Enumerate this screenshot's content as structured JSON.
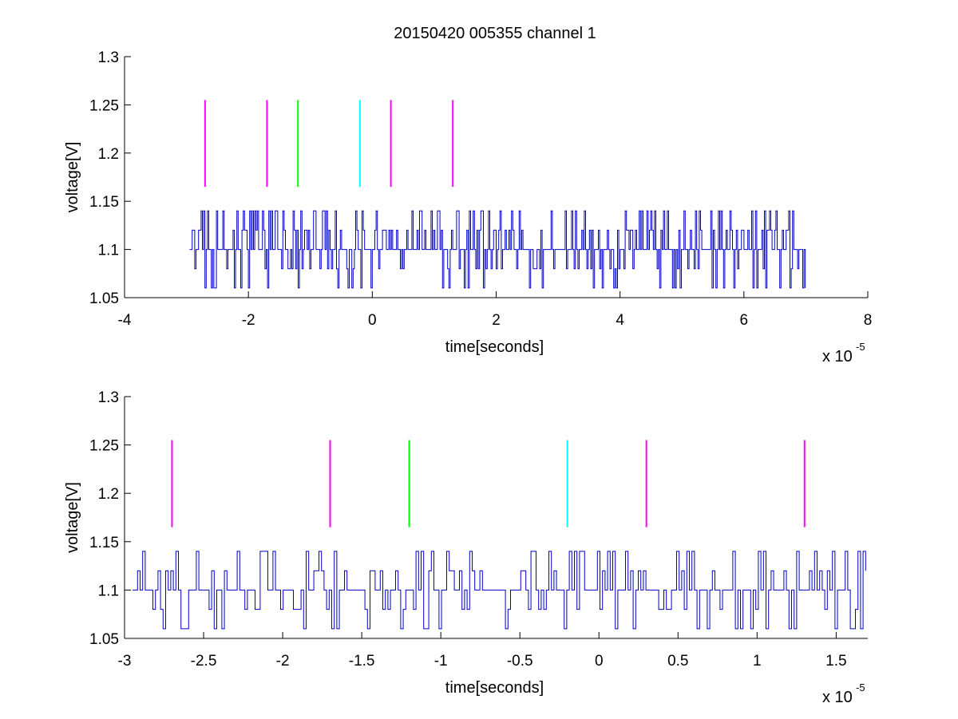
{
  "figure": {
    "title": "20150420 005355 channel 1"
  },
  "chart_data": [
    {
      "type": "line",
      "title": "20150420 005355 channel 1",
      "xlabel": "time[seconds]",
      "ylabel": "voltage[V]",
      "x_exponent_label": "x 10",
      "x_exponent_power": "-5",
      "xlim": [
        -4,
        8
      ],
      "ylim": [
        1.05,
        1.3
      ],
      "xticks": [
        -4,
        -2,
        0,
        2,
        4,
        6,
        8
      ],
      "xtick_labels": [
        "-4",
        "-2",
        "0",
        "2",
        "4",
        "6",
        "8"
      ],
      "yticks": [
        1.05,
        1.1,
        1.15,
        1.2,
        1.25,
        1.3
      ],
      "ytick_labels": [
        "1.05",
        "1.1",
        "1.15",
        "1.2",
        "1.25",
        "1.3"
      ],
      "grid": false,
      "signal": {
        "color": "#0000cc",
        "x_range": [
          -2.95,
          7.0
        ],
        "levels": [
          1.06,
          1.08,
          1.1,
          1.12,
          1.14
        ],
        "baseline": 1.1
      },
      "markers": [
        {
          "x": -2.7,
          "y0": 1.165,
          "y1": 1.255,
          "color": "#ff00ff"
        },
        {
          "x": -1.7,
          "y0": 1.165,
          "y1": 1.255,
          "color": "#ff00ff"
        },
        {
          "x": -1.2,
          "y0": 1.165,
          "y1": 1.255,
          "color": "#00ff00"
        },
        {
          "x": -0.2,
          "y0": 1.165,
          "y1": 1.255,
          "color": "#00ffff"
        },
        {
          "x": 0.3,
          "y0": 1.165,
          "y1": 1.255,
          "color": "#ff00ff"
        },
        {
          "x": 1.3,
          "y0": 1.165,
          "y1": 1.255,
          "color": "#ff00ff"
        }
      ]
    },
    {
      "type": "line",
      "xlabel": "time[seconds]",
      "ylabel": "voltage[V]",
      "x_exponent_label": "x 10",
      "x_exponent_power": "-5",
      "xlim": [
        -3.0,
        1.7
      ],
      "ylim": [
        1.05,
        1.3
      ],
      "xticks": [
        -3,
        -2.5,
        -2,
        -1.5,
        -1,
        -0.5,
        0,
        0.5,
        1,
        1.5
      ],
      "xtick_labels": [
        "-3",
        "-2.5",
        "-2",
        "-1.5",
        "-1",
        "-0.5",
        "0",
        "0.5",
        "1",
        "1.5"
      ],
      "yticks": [
        1.05,
        1.1,
        1.15,
        1.2,
        1.25,
        1.3
      ],
      "ytick_labels": [
        "1.05",
        "1.1",
        "1.15",
        "1.2",
        "1.25",
        "1.3"
      ],
      "grid": false,
      "signal": {
        "color": "#0000cc",
        "x_range": [
          -2.95,
          1.7
        ],
        "levels": [
          1.06,
          1.08,
          1.1,
          1.12,
          1.14
        ],
        "baseline": 1.1
      },
      "markers": [
        {
          "x": -2.7,
          "y0": 1.165,
          "y1": 1.255,
          "color": "#ff00ff"
        },
        {
          "x": -1.7,
          "y0": 1.165,
          "y1": 1.255,
          "color": "#ff00ff"
        },
        {
          "x": -1.2,
          "y0": 1.165,
          "y1": 1.255,
          "color": "#00ff00"
        },
        {
          "x": -0.2,
          "y0": 1.165,
          "y1": 1.255,
          "color": "#00ffff"
        },
        {
          "x": 0.3,
          "y0": 1.165,
          "y1": 1.255,
          "color": "#ff00ff"
        },
        {
          "x": 1.3,
          "y0": 1.165,
          "y1": 1.255,
          "color": "#ff00ff"
        }
      ]
    }
  ]
}
